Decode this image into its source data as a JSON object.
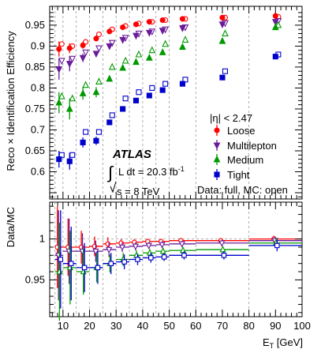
{
  "chart_data": {
    "type": "scatter",
    "top_ylabel": "Reco × Identification Efficiency",
    "bottom_ylabel": "Data/MC",
    "xlabel": "E_T [GeV]",
    "xlabel_main": "E",
    "xlabel_sub": "T",
    "xlabel_unit": " [GeV]",
    "xlim": [
      5,
      100
    ],
    "top_ylim": [
      0.535,
      0.995
    ],
    "bottom_ylim": [
      0.905,
      1.045
    ],
    "x_ticks": [
      10,
      20,
      30,
      40,
      50,
      60,
      70,
      80,
      90,
      100
    ],
    "x_tick_labels": [
      "10",
      "20",
      "30",
      "40",
      "50",
      "60",
      "70",
      "80",
      "90",
      "100"
    ],
    "top_y_ticks": [
      0.6,
      0.65,
      0.7,
      0.75,
      0.8,
      0.85,
      0.9,
      0.95
    ],
    "top_y_tick_labels": [
      "0.6",
      "0.65",
      "0.7",
      "0.75",
      "0.8",
      "0.85",
      "0.9",
      "0.95"
    ],
    "bottom_y_ticks": [
      0.95,
      1.0
    ],
    "bottom_y_tick_labels": [
      "0.95",
      "1"
    ],
    "grid_x_dashed": [
      7,
      10,
      15,
      20,
      25,
      30,
      35,
      40,
      45,
      50,
      60,
      80
    ],
    "legend": {
      "header": "|η| < 2.47",
      "placement": "right-middle",
      "entries": [
        "Loose",
        "Multilepton",
        "Medium",
        "Tight"
      ]
    },
    "annotations": {
      "experiment": "ATLAS",
      "lumi_prefix": "L dt = 20.3 fb",
      "lumi_exp": "-1",
      "energy": "s = 8 TeV",
      "data_mc_note": "Data: full, MC: open"
    },
    "series": [
      {
        "name": "Loose",
        "color": "#ff0000",
        "marker": "circle",
        "x": [
          8.5,
          12.5,
          17.5,
          22.5,
          27.5,
          32.5,
          37.5,
          42.5,
          47.5,
          55,
          70,
          90
        ],
        "data": [
          0.893,
          0.895,
          0.902,
          0.918,
          0.935,
          0.945,
          0.952,
          0.958,
          0.962,
          0.965,
          0.968,
          0.972
        ],
        "data_err": [
          0.018,
          0.012,
          0.008,
          0.005,
          0.003,
          0.002,
          0.002,
          0.002,
          0.002,
          0.002,
          0.002,
          0.002
        ],
        "mc": [
          0.905,
          0.9,
          0.91,
          0.928,
          0.94,
          0.948,
          0.954,
          0.958,
          0.962,
          0.965,
          0.968,
          0.97
        ],
        "ratio": [
          0.99,
          0.99,
          0.99,
          0.991,
          0.994,
          0.995,
          0.996,
          0.997,
          0.997,
          0.998,
          0.998,
          1.0
        ],
        "ratio_err": [
          0.05,
          0.035,
          0.02,
          0.012,
          0.008,
          0.005,
          0.004,
          0.003,
          0.003,
          0.003,
          0.003,
          0.004
        ]
      },
      {
        "name": "Multilepton",
        "color": "#6a1b9a",
        "marker": "triangle-down",
        "x": [
          8.5,
          12.5,
          17.5,
          22.5,
          27.5,
          32.5,
          37.5,
          42.5,
          47.5,
          55,
          70,
          90
        ],
        "data": [
          0.845,
          0.858,
          0.872,
          0.882,
          0.9,
          0.915,
          0.925,
          0.932,
          0.937,
          0.943,
          0.952,
          0.958
        ],
        "data_err": [
          0.025,
          0.018,
          0.01,
          0.006,
          0.004,
          0.003,
          0.002,
          0.002,
          0.002,
          0.002,
          0.002,
          0.002
        ],
        "mc": [
          0.865,
          0.87,
          0.885,
          0.895,
          0.908,
          0.92,
          0.93,
          0.935,
          0.94,
          0.945,
          0.955,
          0.96
        ],
        "ratio": [
          0.98,
          0.985,
          0.985,
          0.985,
          0.987,
          0.99,
          0.991,
          0.992,
          0.993,
          0.994,
          0.995,
          0.998
        ],
        "ratio_err": [
          0.055,
          0.04,
          0.022,
          0.013,
          0.009,
          0.006,
          0.005,
          0.004,
          0.004,
          0.004,
          0.004,
          0.005
        ]
      },
      {
        "name": "Medium",
        "color": "#009900",
        "marker": "triangle-up",
        "x": [
          8.5,
          12.5,
          17.5,
          22.5,
          27.5,
          32.5,
          37.5,
          42.5,
          47.5,
          55,
          70,
          90
        ],
        "data": [
          0.765,
          0.75,
          0.787,
          0.79,
          0.822,
          0.848,
          0.862,
          0.872,
          0.885,
          0.898,
          0.912,
          0.945
        ],
        "data_err": [
          0.025,
          0.025,
          0.015,
          0.012,
          0.007,
          0.004,
          0.003,
          0.003,
          0.002,
          0.002,
          0.002,
          0.002
        ],
        "mc": [
          0.78,
          0.775,
          0.807,
          0.815,
          0.85,
          0.865,
          0.88,
          0.89,
          0.905,
          0.915,
          0.93,
          0.95
        ],
        "ratio": [
          0.96,
          0.965,
          0.96,
          0.965,
          0.97,
          0.975,
          0.98,
          0.983,
          0.985,
          0.986,
          0.987,
          0.995
        ],
        "ratio_err": [
          0.06,
          0.045,
          0.028,
          0.018,
          0.011,
          0.008,
          0.006,
          0.005,
          0.004,
          0.004,
          0.004,
          0.006
        ]
      },
      {
        "name": "Tight",
        "color": "#0000cc",
        "marker": "square",
        "x": [
          8.5,
          12.5,
          17.5,
          22.5,
          27.5,
          32.5,
          37.5,
          42.5,
          47.5,
          55,
          70,
          90
        ],
        "data": [
          0.63,
          0.625,
          0.67,
          0.674,
          0.718,
          0.75,
          0.77,
          0.782,
          0.795,
          0.81,
          0.825,
          0.875
        ],
        "data_err": [
          0.02,
          0.02,
          0.012,
          0.01,
          0.006,
          0.004,
          0.003,
          0.003,
          0.002,
          0.002,
          0.002,
          0.003
        ],
        "mc": [
          0.64,
          0.64,
          0.695,
          0.695,
          0.735,
          0.775,
          0.79,
          0.8,
          0.81,
          0.82,
          0.84,
          0.88
        ],
        "ratio": [
          0.975,
          0.97,
          0.965,
          0.965,
          0.97,
          0.972,
          0.975,
          0.977,
          0.978,
          0.98,
          0.98,
          0.992
        ],
        "ratio_err": [
          0.06,
          0.045,
          0.03,
          0.02,
          0.013,
          0.009,
          0.007,
          0.006,
          0.005,
          0.005,
          0.005,
          0.007
        ]
      }
    ]
  }
}
